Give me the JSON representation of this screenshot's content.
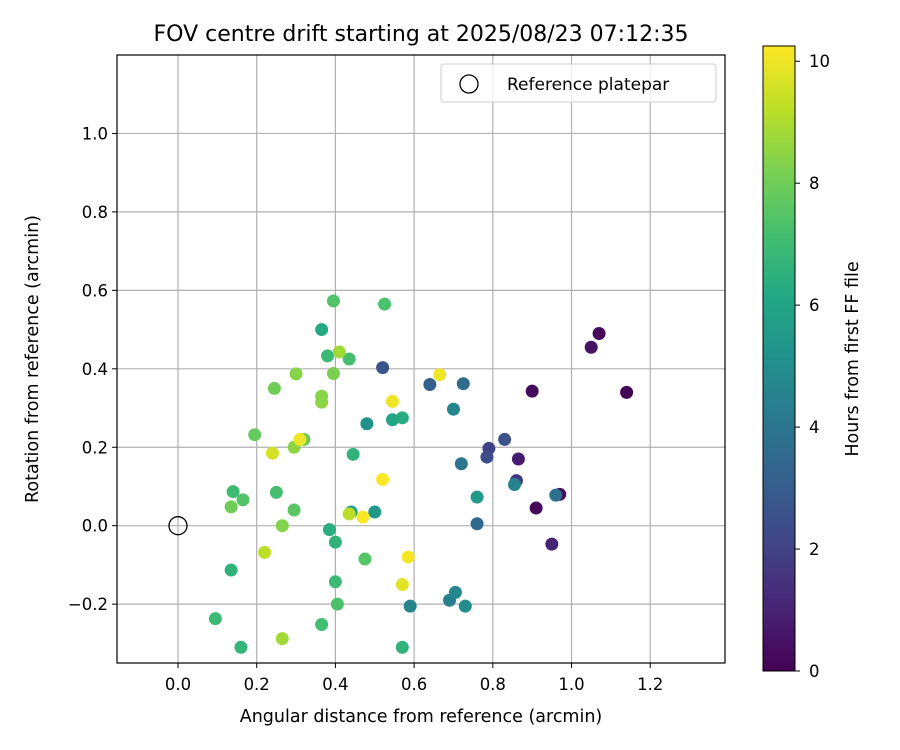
{
  "chart_data": {
    "type": "scatter",
    "title": "FOV centre drift starting at 2025/08/23 07:12:35",
    "xlabel": "Angular distance from reference (arcmin)",
    "ylabel": "Rotation from reference (arcmin)",
    "xlim": [
      -0.155,
      1.39
    ],
    "ylim": [
      -0.35,
      1.2
    ],
    "xticks": [
      0.0,
      0.2,
      0.4,
      0.6,
      0.8,
      1.0,
      1.2
    ],
    "xtick_labels": [
      "0.0",
      "0.2",
      "0.4",
      "0.6",
      "0.8",
      "1.0",
      "1.2"
    ],
    "yticks": [
      -0.2,
      0.0,
      0.2,
      0.4,
      0.6,
      0.8,
      1.0
    ],
    "ytick_labels": [
      "−0.2",
      "0.0",
      "0.2",
      "0.4",
      "0.6",
      "0.8",
      "1.0"
    ],
    "grid": true,
    "legend": {
      "position": "top-right",
      "label": "Reference platepar"
    },
    "reference_point": {
      "x": 0.0,
      "y": 0.0
    },
    "colorbar": {
      "label": "Hours from first FF file",
      "colormap": "viridis",
      "range": [
        0,
        10.25
      ],
      "ticks": [
        0,
        2,
        4,
        6,
        8,
        10
      ],
      "tick_labels": [
        "0",
        "2",
        "4",
        "6",
        "8",
        "10"
      ]
    },
    "points": [
      {
        "x": 1.07,
        "y": 0.49,
        "h": 0.2
      },
      {
        "x": 1.05,
        "y": 0.455,
        "h": 0.5
      },
      {
        "x": 1.14,
        "y": 0.34,
        "h": 0.1
      },
      {
        "x": 0.9,
        "y": 0.343,
        "h": 0.3
      },
      {
        "x": 0.97,
        "y": 0.08,
        "h": 0.3
      },
      {
        "x": 0.91,
        "y": 0.045,
        "h": 0.2
      },
      {
        "x": 0.95,
        "y": -0.047,
        "h": 1.0
      },
      {
        "x": 0.865,
        "y": 0.17,
        "h": 0.8
      },
      {
        "x": 0.86,
        "y": 0.115,
        "h": 1.6
      },
      {
        "x": 0.79,
        "y": 0.197,
        "h": 2.0
      },
      {
        "x": 0.785,
        "y": 0.175,
        "h": 2.4
      },
      {
        "x": 0.83,
        "y": 0.22,
        "h": 2.6
      },
      {
        "x": 0.96,
        "y": 0.078,
        "h": 3.8
      },
      {
        "x": 0.855,
        "y": 0.105,
        "h": 4.5
      },
      {
        "x": 0.52,
        "y": 0.403,
        "h": 2.7
      },
      {
        "x": 0.64,
        "y": 0.36,
        "h": 3.1
      },
      {
        "x": 0.725,
        "y": 0.362,
        "h": 3.6
      },
      {
        "x": 0.72,
        "y": 0.158,
        "h": 4.0
      },
      {
        "x": 0.76,
        "y": 0.005,
        "h": 3.5
      },
      {
        "x": 0.7,
        "y": 0.297,
        "h": 4.6
      },
      {
        "x": 0.76,
        "y": 0.073,
        "h": 5.5
      },
      {
        "x": 0.69,
        "y": -0.19,
        "h": 4.4
      },
      {
        "x": 0.705,
        "y": -0.17,
        "h": 4.7
      },
      {
        "x": 0.73,
        "y": -0.205,
        "h": 4.9
      },
      {
        "x": 0.59,
        "y": -0.205,
        "h": 4.6
      },
      {
        "x": 0.48,
        "y": 0.26,
        "h": 5.2
      },
      {
        "x": 0.545,
        "y": 0.27,
        "h": 6.0
      },
      {
        "x": 0.57,
        "y": 0.275,
        "h": 6.3
      },
      {
        "x": 0.5,
        "y": 0.035,
        "h": 5.5
      },
      {
        "x": 0.44,
        "y": 0.035,
        "h": 5.8
      },
      {
        "x": 0.385,
        "y": -0.01,
        "h": 6.4
      },
      {
        "x": 0.445,
        "y": 0.182,
        "h": 6.6
      },
      {
        "x": 0.365,
        "y": 0.5,
        "h": 6.2
      },
      {
        "x": 0.38,
        "y": 0.433,
        "h": 6.9
      },
      {
        "x": 0.435,
        "y": 0.425,
        "h": 7.2
      },
      {
        "x": 0.395,
        "y": 0.573,
        "h": 7.4
      },
      {
        "x": 0.525,
        "y": 0.565,
        "h": 7.3
      },
      {
        "x": 0.4,
        "y": -0.042,
        "h": 6.6
      },
      {
        "x": 0.4,
        "y": -0.143,
        "h": 6.9
      },
      {
        "x": 0.405,
        "y": -0.2,
        "h": 7.3
      },
      {
        "x": 0.365,
        "y": -0.252,
        "h": 7.1
      },
      {
        "x": 0.57,
        "y": -0.31,
        "h": 6.6
      },
      {
        "x": 0.475,
        "y": -0.085,
        "h": 7.5
      },
      {
        "x": 0.095,
        "y": -0.237,
        "h": 6.9
      },
      {
        "x": 0.16,
        "y": -0.31,
        "h": 6.7
      },
      {
        "x": 0.135,
        "y": -0.113,
        "h": 6.6
      },
      {
        "x": 0.14,
        "y": 0.087,
        "h": 7.0
      },
      {
        "x": 0.165,
        "y": 0.066,
        "h": 7.4
      },
      {
        "x": 0.135,
        "y": 0.048,
        "h": 8.0
      },
      {
        "x": 0.25,
        "y": 0.085,
        "h": 7.2
      },
      {
        "x": 0.295,
        "y": 0.04,
        "h": 7.6
      },
      {
        "x": 0.265,
        "y": 0.0,
        "h": 8.3
      },
      {
        "x": 0.195,
        "y": 0.232,
        "h": 7.8
      },
      {
        "x": 0.245,
        "y": 0.35,
        "h": 8.0
      },
      {
        "x": 0.3,
        "y": 0.387,
        "h": 8.4
      },
      {
        "x": 0.32,
        "y": 0.22,
        "h": 7.8
      },
      {
        "x": 0.295,
        "y": 0.2,
        "h": 8.5
      },
      {
        "x": 0.365,
        "y": 0.315,
        "h": 8.5
      },
      {
        "x": 0.365,
        "y": 0.33,
        "h": 8.4
      },
      {
        "x": 0.395,
        "y": 0.388,
        "h": 8.2
      },
      {
        "x": 0.41,
        "y": 0.443,
        "h": 8.8
      },
      {
        "x": 0.22,
        "y": -0.068,
        "h": 9.2
      },
      {
        "x": 0.265,
        "y": -0.288,
        "h": 8.8
      },
      {
        "x": 0.435,
        "y": 0.03,
        "h": 9.2
      },
      {
        "x": 0.24,
        "y": 0.185,
        "h": 9.6
      },
      {
        "x": 0.31,
        "y": 0.22,
        "h": 10.0
      },
      {
        "x": 0.545,
        "y": 0.317,
        "h": 10.0
      },
      {
        "x": 0.47,
        "y": 0.022,
        "h": 10.2
      },
      {
        "x": 0.52,
        "y": 0.118,
        "h": 10.2
      },
      {
        "x": 0.665,
        "y": 0.385,
        "h": 10.0
      },
      {
        "x": 0.585,
        "y": -0.08,
        "h": 10.1
      },
      {
        "x": 0.57,
        "y": -0.15,
        "h": 9.8
      }
    ]
  }
}
